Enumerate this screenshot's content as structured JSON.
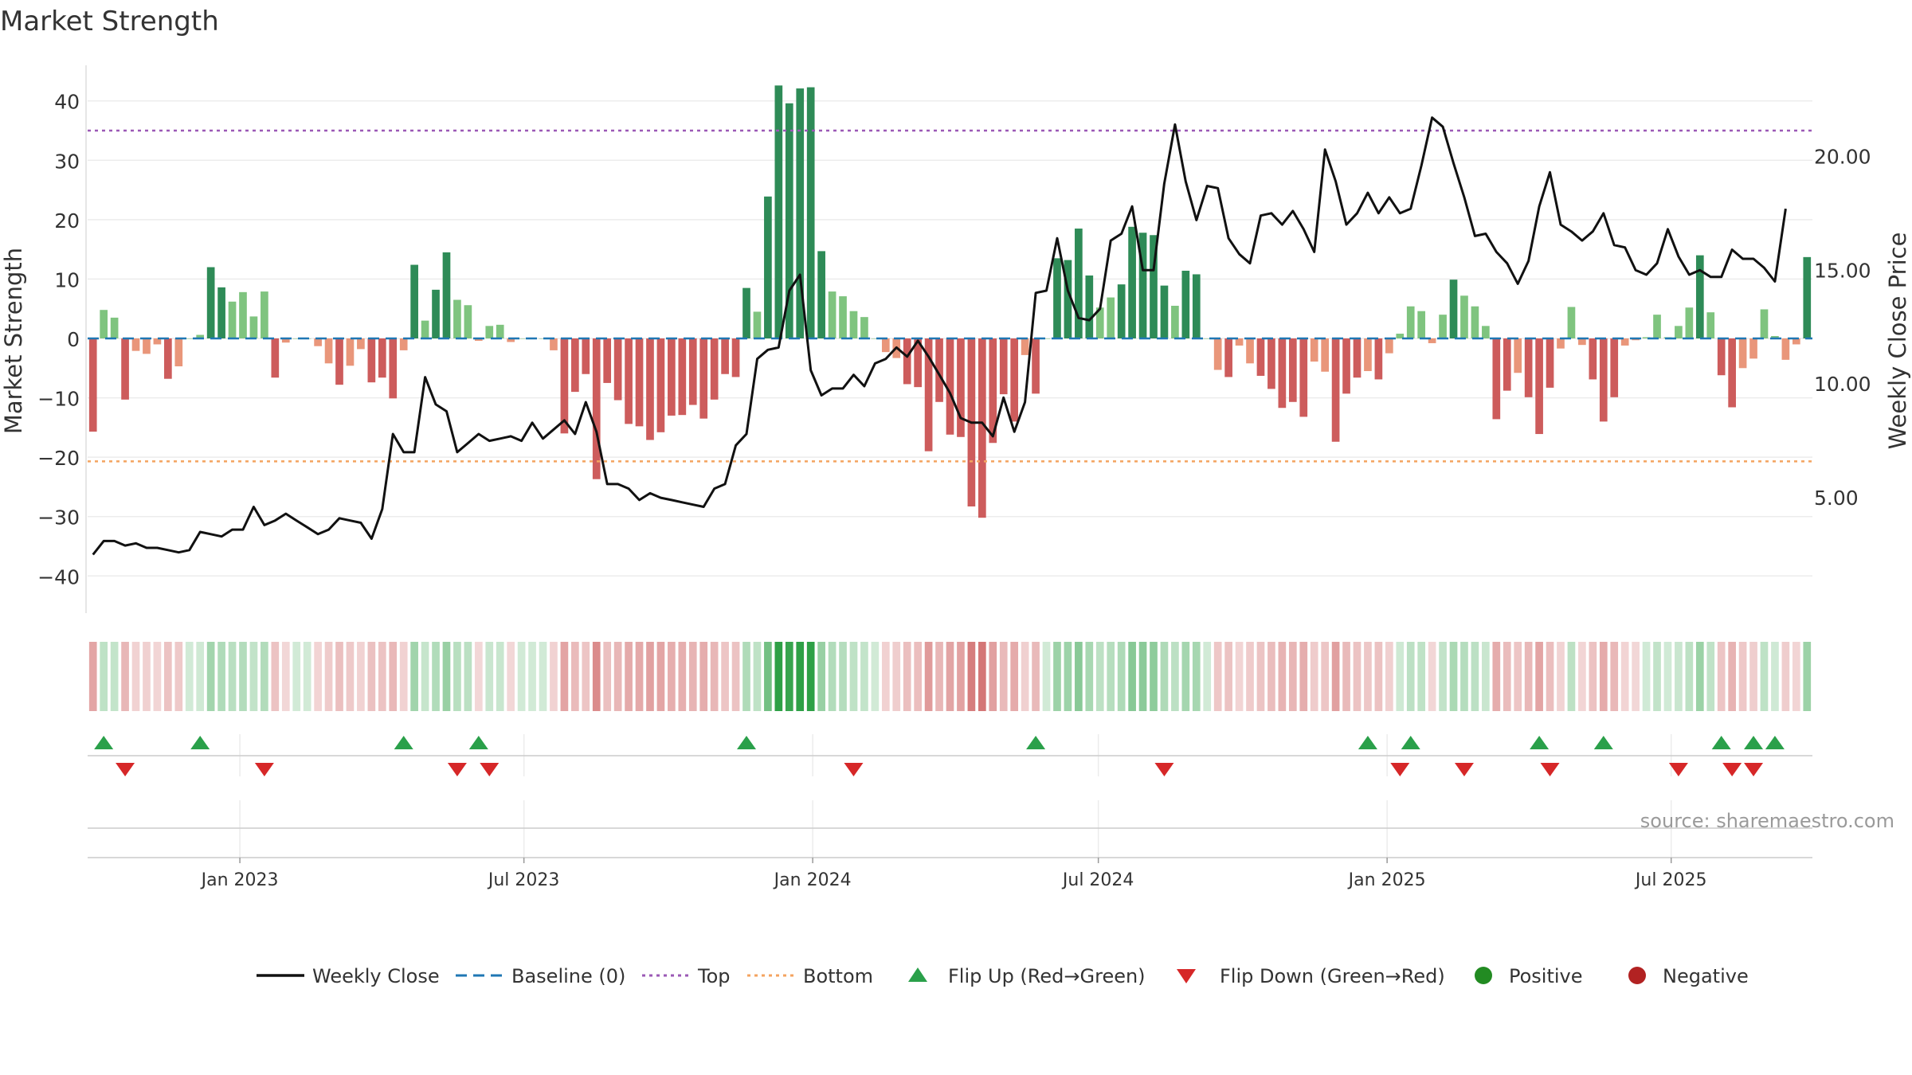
{
  "chart_data": {
    "type": "bar",
    "title": "Market Strength",
    "y_left_label": "Market Strength",
    "y_right_label": "Weekly Close Price",
    "y_left_range": [
      -46,
      46
    ],
    "y_right_range": [
      0,
      24
    ],
    "y_left_ticks": [
      40,
      30,
      20,
      10,
      0,
      -10,
      -20,
      -30,
      -40
    ],
    "y_left_tick_labels": [
      "40",
      "30",
      "20",
      "10",
      "0",
      "−10",
      "−20",
      "−30",
      "−40"
    ],
    "y_right_ticks": [
      20,
      15,
      10,
      5
    ],
    "y_right_tick_labels": [
      "20.00",
      "15.00",
      "10.00",
      "5.00"
    ],
    "x_start": "2022-09-26",
    "x_end": "2025-09-29",
    "x_ticks": [
      "2023-01-01",
      "2023-07-01",
      "2024-01-01",
      "2024-07-01",
      "2025-01-01",
      "2025-07-01"
    ],
    "x_tick_labels": [
      "Jan 2023",
      "Jul 2023",
      "Jan 2024",
      "Jul 2024",
      "Jan 2025",
      "Jul 2025"
    ],
    "top_level": 35,
    "bottom_level": -20.7,
    "source_text": "source: sharemaestro.com",
    "colors": {
      "strong_green": "#2e8b57",
      "light_green": "#7fc47f",
      "strong_red": "#cd5c5c",
      "light_red": "#e9967a",
      "price_line": "#111111",
      "baseline": "#1f77b4",
      "top_line": "#9b59b6",
      "bottom_line": "#f4a460",
      "flip_up": "#2aa04a",
      "flip_down": "#d62728",
      "positive": "#228b22",
      "negative": "#b22222"
    },
    "series": [
      {
        "name": "Weekly Close",
        "type": "line",
        "axis": "right",
        "values": [
          2.5,
          3.1,
          3.1,
          2.9,
          3.0,
          2.8,
          2.8,
          2.7,
          2.6,
          2.7,
          3.5,
          3.4,
          3.3,
          3.6,
          3.6,
          4.6,
          3.8,
          4.0,
          4.3,
          4.0,
          3.7,
          3.4,
          3.6,
          4.1,
          4.0,
          3.9,
          3.2,
          4.5,
          7.8,
          7.0,
          7.0,
          10.3,
          9.1,
          8.8,
          7.0,
          7.4,
          7.8,
          7.5,
          7.6,
          7.7,
          7.5,
          8.3,
          7.6,
          8.0,
          8.4,
          7.8,
          9.2,
          7.9,
          5.6,
          5.6,
          5.4,
          4.9,
          5.2,
          5.0,
          4.9,
          4.8,
          4.7,
          4.6,
          5.4,
          5.6,
          7.3,
          7.8,
          11.1,
          11.5,
          11.6,
          14.1,
          14.8,
          10.6,
          9.5,
          9.8,
          9.8,
          10.4,
          9.9,
          10.9,
          11.1,
          11.6,
          11.2,
          11.9,
          11.2,
          10.4,
          9.6,
          8.5,
          8.3,
          8.3,
          7.7,
          9.4,
          7.9,
          9.2,
          14.0,
          14.1,
          16.4,
          14.1,
          12.9,
          12.8,
          13.3,
          16.3,
          16.6,
          17.8,
          15.0,
          15.0,
          18.8,
          21.4,
          18.9,
          17.2,
          18.7,
          18.6,
          16.4,
          15.7,
          15.3,
          17.4,
          17.5,
          17.0,
          17.6,
          16.8,
          15.8,
          20.3,
          18.9,
          17.0,
          17.5,
          18.4,
          17.5,
          18.2,
          17.5,
          17.7,
          19.6,
          21.7,
          21.3,
          19.7,
          18.2,
          16.5,
          16.6,
          15.8,
          15.3,
          14.4,
          15.4,
          17.8,
          19.3,
          17.0,
          16.7,
          16.3,
          16.7,
          17.5,
          16.1,
          16.0,
          15.0,
          14.8,
          15.3,
          16.8,
          15.6,
          14.8,
          15.0,
          14.7,
          14.7,
          15.9,
          15.5,
          15.5,
          15.1,
          14.5,
          17.7
        ]
      },
      {
        "name": "Market Strength",
        "type": "bar",
        "axis": "left",
        "values": [
          -15.7,
          4.8,
          3.5,
          -10.3,
          -2.1,
          -2.6,
          -1.0,
          -6.8,
          -4.7,
          0.0,
          0.6,
          12.0,
          8.6,
          6.2,
          7.8,
          3.7,
          7.9,
          -6.6,
          -0.7,
          0.0,
          0.0,
          -1.3,
          -4.2,
          -7.8,
          -4.6,
          -1.8,
          -7.4,
          -6.6,
          -10.1,
          -2.0,
          12.4,
          3.0,
          8.2,
          14.5,
          6.5,
          5.6,
          -0.4,
          2.1,
          2.3,
          -0.6,
          0.0,
          0.0,
          0.0,
          -2.0,
          -16.0,
          -9.0,
          -6.0,
          -23.7,
          -7.5,
          -10.4,
          -14.4,
          -14.8,
          -17.1,
          -15.8,
          -13.0,
          -12.9,
          -11.2,
          -13.5,
          -10.3,
          -6.0,
          -6.5,
          8.5,
          4.5,
          23.9,
          42.6,
          39.6,
          42.1,
          42.3,
          14.7,
          7.9,
          7.1,
          4.6,
          3.6,
          0.0,
          -2.3,
          -3.3,
          -7.7,
          -8.2,
          -19.0,
          -10.7,
          -16.2,
          -16.6,
          -28.3,
          -30.2,
          -17.6,
          -9.4,
          -14.0,
          -2.8,
          -9.3,
          0.0,
          13.5,
          13.2,
          18.5,
          10.6,
          5.2,
          6.9,
          9.1,
          18.8,
          17.8,
          17.4,
          8.9,
          5.5,
          11.4,
          10.8,
          0.0,
          -5.3,
          -6.5,
          -1.2,
          -4.2,
          -6.3,
          -8.5,
          -11.7,
          -10.7,
          -13.2,
          -3.9,
          -5.6,
          -17.4,
          -9.3,
          -6.6,
          -5.5,
          -6.9,
          -2.5,
          0.8,
          5.4,
          4.6,
          -0.8,
          4.0,
          9.9,
          7.2,
          5.4,
          2.1,
          -13.6,
          -8.8,
          -5.8,
          -9.9,
          -16.1,
          -8.3,
          -1.7,
          5.3,
          -1.1,
          -6.9,
          -14.0,
          -9.9,
          -1.2,
          -0.3,
          0.2,
          4.0,
          0.2,
          2.1,
          5.2,
          14.0,
          4.4,
          -6.2,
          -11.6,
          -5.0,
          -3.4,
          4.9,
          0.4,
          -3.6,
          -1.0,
          13.7
        ]
      },
      {
        "name": "Baseline (0)",
        "type": "line",
        "axis": "left",
        "values": [
          0
        ]
      },
      {
        "name": "Top",
        "type": "line",
        "axis": "left",
        "values": [
          35
        ]
      },
      {
        "name": "Bottom",
        "type": "line",
        "axis": "left",
        "values": [
          -20.7
        ]
      },
      {
        "name": "Flip Up (Red→Green)",
        "type": "scatter",
        "marker": "triangle-up",
        "x_index": [
          1,
          10,
          29,
          36,
          61,
          88,
          119,
          123,
          135,
          141,
          152,
          155,
          157
        ]
      },
      {
        "name": "Flip Down (Green→Red)",
        "type": "scatter",
        "marker": "triangle-down",
        "x_index": [
          3,
          16,
          34,
          37,
          71,
          100,
          122,
          128,
          136,
          148,
          153,
          155
        ]
      },
      {
        "name": "Positive",
        "type": "scatter",
        "marker": "circle",
        "values": []
      },
      {
        "name": "Negative",
        "type": "scatter",
        "marker": "circle",
        "values": []
      }
    ],
    "legend": {
      "placement": "bottom-center",
      "entries": [
        {
          "label": "Weekly Close",
          "kind": "line-solid",
          "color": "#111111"
        },
        {
          "label": "Baseline (0)",
          "kind": "line-dashed",
          "color": "#1f77b4"
        },
        {
          "label": "Top",
          "kind": "line-dotted",
          "color": "#9b59b6"
        },
        {
          "label": "Bottom",
          "kind": "line-dotted",
          "color": "#f4a460"
        },
        {
          "label": "Flip Up (Red→Green)",
          "kind": "triangle-up",
          "color": "#2aa04a"
        },
        {
          "label": "Flip Down (Green→Red)",
          "kind": "triangle-down",
          "color": "#d62728"
        },
        {
          "label": "Positive",
          "kind": "circle",
          "color": "#228b22"
        },
        {
          "label": "Negative",
          "kind": "circle",
          "color": "#b22222"
        }
      ]
    }
  }
}
